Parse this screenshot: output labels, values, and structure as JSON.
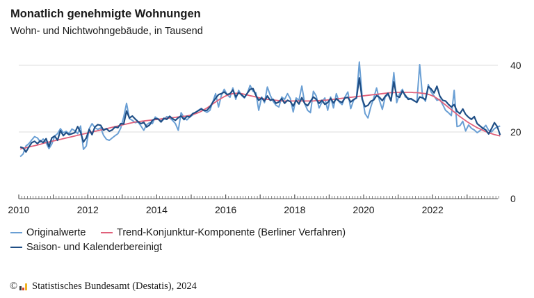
{
  "header": {
    "title": "Monatlich genehmigte Wohnungen",
    "subtitle": "Wohn- und Nichtwohngebäude, in Tausend"
  },
  "footer": {
    "copyright_symbol": "©",
    "source": "Statistisches Bundesamt (Destatis), 2024"
  },
  "chart_data": {
    "type": "line",
    "title": "Monatlich genehmigte Wohnungen",
    "subtitle": "Wohn- und Nichtwohngebäude, in Tausend",
    "xlabel": "",
    "ylabel": "in Tausend",
    "x_start": "2010-01",
    "x_frequency": "monthly",
    "xlim": [
      2010,
      2024
    ],
    "ylim": [
      0,
      42
    ],
    "y_axis_position": "right",
    "y_ticks": [
      0,
      20,
      40
    ],
    "x_ticks": [
      "2010",
      "2012",
      "2014",
      "2016",
      "2018",
      "2020",
      "2022"
    ],
    "grid": true,
    "legend_position": "bottom-left",
    "series": [
      {
        "name": "Originalwerte",
        "color": "#6a9fd4",
        "values": [
          12.6,
          13.4,
          15.8,
          16.5,
          17.6,
          18.6,
          18.2,
          17.0,
          17.9,
          16.8,
          15.0,
          16.4,
          18.8,
          19.5,
          21.0,
          19.8,
          20.2,
          19.5,
          20.9,
          20.4,
          19.5,
          21.8,
          14.8,
          15.8,
          21.0,
          22.5,
          21.3,
          20.8,
          21.2,
          19.0,
          17.8,
          17.5,
          18.2,
          18.9,
          19.5,
          21.2,
          24.5,
          28.6,
          24.0,
          23.5,
          22.8,
          23.0,
          21.8,
          20.5,
          22.2,
          22.8,
          22.5,
          24.5,
          23.9,
          23.2,
          23.8,
          24.6,
          24.2,
          23.5,
          22.5,
          20.5,
          25.8,
          24.3,
          23.6,
          24.5,
          25.1,
          25.8,
          26.5,
          27.1,
          26.4,
          25.9,
          26.5,
          29.0,
          31.5,
          27.5,
          31.0,
          32.8,
          31.2,
          30.4,
          33.2,
          29.8,
          32.5,
          31.0,
          30.2,
          31.5,
          34.0,
          32.2,
          31.8,
          26.5,
          30.5,
          28.8,
          33.5,
          31.0,
          29.2,
          28.0,
          27.5,
          30.5,
          29.8,
          31.5,
          30.0,
          26.0,
          30.2,
          29.5,
          33.8,
          28.5,
          26.5,
          25.8,
          32.2,
          30.8,
          27.2,
          29.0,
          30.2,
          26.5,
          30.5,
          27.2,
          31.5,
          29.0,
          28.2,
          30.5,
          32.0,
          27.0,
          29.5,
          30.4,
          41.0,
          30.5,
          25.5,
          24.2,
          27.5,
          30.2,
          33.2,
          29.5,
          26.8,
          30.5,
          31.2,
          29.4,
          37.8,
          28.8,
          31.5,
          32.8,
          30.5,
          30.2,
          29.8,
          29.5,
          28.9,
          40.2,
          30.6,
          29.2,
          34.2,
          32.0,
          30.8,
          29.5,
          29.8,
          28.2,
          26.5,
          25.8,
          24.9,
          32.5,
          21.6,
          21.9,
          23.2,
          20.3,
          22.1,
          21.1,
          20.6,
          19.8,
          20.4,
          21.0,
          22.0,
          20.5,
          20.0,
          21.0,
          21.5,
          21.8
        ]
      },
      {
        "name": "Saison- und Kalenderbereinigt",
        "color": "#1f4e85",
        "values": [
          15.5,
          15.2,
          14.0,
          15.5,
          16.8,
          17.2,
          16.5,
          17.4,
          16.8,
          18.0,
          15.6,
          18.2,
          18.8,
          17.5,
          20.4,
          18.9,
          19.8,
          19.2,
          19.5,
          19.8,
          21.6,
          19.9,
          17.0,
          18.2,
          20.8,
          19.2,
          21.5,
          22.2,
          22.0,
          20.5,
          21.0,
          20.2,
          20.6,
          21.5,
          21.3,
          22.5,
          22.4,
          26.3,
          24.2,
          24.8,
          23.9,
          23.1,
          22.5,
          22.9,
          21.5,
          22.1,
          23.5,
          24.0,
          23.9,
          23.0,
          24.1,
          23.8,
          24.7,
          24.0,
          23.5,
          24.3,
          24.8,
          23.7,
          24.7,
          24.5,
          25.5,
          25.9,
          26.4,
          26.9,
          26.4,
          26.5,
          27.5,
          28.9,
          30.1,
          31.2,
          31.5,
          32.0,
          31.2,
          31.5,
          32.6,
          30.5,
          31.8,
          31.2,
          30.4,
          31.6,
          32.8,
          33.0,
          31.0,
          29.5,
          30.2,
          29.3,
          30.8,
          29.5,
          29.8,
          28.6,
          29.0,
          30.0,
          28.6,
          29.5,
          29.1,
          27.8,
          29.5,
          28.4,
          30.3,
          28.5,
          27.9,
          29.2,
          30.5,
          29.8,
          28.6,
          29.5,
          28.3,
          28.8,
          30.1,
          28.7,
          30.0,
          29.2,
          28.9,
          30.2,
          30.4,
          29.0,
          29.7,
          30.2,
          36.2,
          29.8,
          27.6,
          28.0,
          29.2,
          29.6,
          30.9,
          30.4,
          29.4,
          30.7,
          31.6,
          29.3,
          35.0,
          30.8,
          30.4,
          32.3,
          31.0,
          29.8,
          30.0,
          29.4,
          28.9,
          30.5,
          30.2,
          29.7,
          33.6,
          32.9,
          31.7,
          33.7,
          30.8,
          29.5,
          29.3,
          28.3,
          27.5,
          28.2,
          26.2,
          25.5,
          26.9,
          25.3,
          24.4,
          23.8,
          24.6,
          22.5,
          21.8,
          21.1,
          20.6,
          19.4,
          21.0,
          22.8,
          21.6,
          19.1
        ]
      },
      {
        "name": "Trend-Konjunktur-Komponente (Berliner Verfahren)",
        "color": "#e0607a",
        "values": [
          14.9,
          15.1,
          15.3,
          15.5,
          15.7,
          15.9,
          16.1,
          16.3,
          16.6,
          16.8,
          17.0,
          17.2,
          17.4,
          17.6,
          17.8,
          18.0,
          18.2,
          18.4,
          18.6,
          18.8,
          19.0,
          19.2,
          19.4,
          19.6,
          19.8,
          20.0,
          20.2,
          20.4,
          20.6,
          20.8,
          21.0,
          21.2,
          21.4,
          21.6,
          21.8,
          22.0,
          22.2,
          22.4,
          22.6,
          22.8,
          23.0,
          23.1,
          23.2,
          23.3,
          23.4,
          23.5,
          23.6,
          23.7,
          23.8,
          23.9,
          24.0,
          24.1,
          24.2,
          24.3,
          24.4,
          24.5,
          24.6,
          24.7,
          24.8,
          25.0,
          25.2,
          25.5,
          25.8,
          26.2,
          26.7,
          27.2,
          27.8,
          28.4,
          29.0,
          29.6,
          30.1,
          30.6,
          31.0,
          31.3,
          31.5,
          31.6,
          31.6,
          31.5,
          31.3,
          31.1,
          30.9,
          30.7,
          30.5,
          30.3,
          30.1,
          29.9,
          29.8,
          29.7,
          29.6,
          29.5,
          29.4,
          29.3,
          29.3,
          29.3,
          29.3,
          29.3,
          29.3,
          29.3,
          29.3,
          29.3,
          29.3,
          29.3,
          29.3,
          29.4,
          29.4,
          29.5,
          29.5,
          29.6,
          29.7,
          29.8,
          29.9,
          30.0,
          30.1,
          30.2,
          30.3,
          30.4,
          30.5,
          30.6,
          30.7,
          30.8,
          30.9,
          31.0,
          31.1,
          31.2,
          31.3,
          31.4,
          31.5,
          31.6,
          31.7,
          31.8,
          31.8,
          31.9,
          31.9,
          31.9,
          31.9,
          31.9,
          31.9,
          31.8,
          31.8,
          31.7,
          31.6,
          31.5,
          31.3,
          31.0,
          30.6,
          30.1,
          29.5,
          28.8,
          28.1,
          27.4,
          26.7,
          26.0,
          25.3,
          24.6,
          24.0,
          23.4,
          22.8,
          22.3,
          21.8,
          21.3,
          20.9,
          20.5,
          20.1,
          19.8,
          19.5,
          19.2,
          19.0,
          18.8
        ]
      }
    ]
  }
}
